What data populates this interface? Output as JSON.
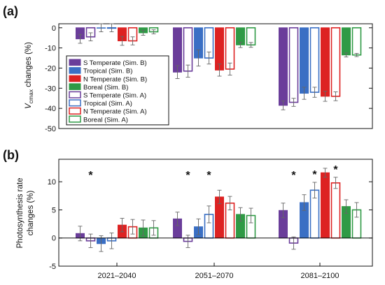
{
  "chart_data": [
    {
      "panel": "(a)",
      "type": "bar",
      "ylabel": "V_cmax changes (%)",
      "ylabel_main": "V",
      "ylabel_sub": "cmax",
      "ylabel_rest": " changes (%)",
      "ylim": [
        -50,
        2
      ],
      "yticks": [
        0,
        -10,
        -20,
        -30,
        -40,
        -50
      ],
      "categories": [
        "2021–2040",
        "2051–2070",
        "2081–2100"
      ],
      "series": [
        {
          "name": "S Temperate (Sim. B)",
          "color": "#6a3d9a",
          "filled": true,
          "values": [
            -5.5,
            -22,
            -38.5
          ],
          "errors": [
            2.2,
            3.2,
            2.2
          ]
        },
        {
          "name": "S Temperate (Sim. A)",
          "color": "#6a3d9a",
          "filled": false,
          "values": [
            -4.5,
            -21.5,
            -37
          ],
          "errors": [
            2,
            3,
            2
          ]
        },
        {
          "name": "Tropical (Sim. B)",
          "color": "#3a6fc4",
          "filled": true,
          "values": [
            0,
            -15,
            -32.5
          ],
          "errors": [
            2,
            4,
            3
          ]
        },
        {
          "name": "Tropical (Sim. A)",
          "color": "#3a6fc4",
          "filled": false,
          "values": [
            0,
            -15,
            -32
          ],
          "errors": [
            2,
            3,
            2.5
          ]
        },
        {
          "name": "N Temperate (Sim. B)",
          "color": "#dd2222",
          "filled": true,
          "values": [
            -6.5,
            -21,
            -34
          ],
          "errors": [
            2.2,
            3,
            2.5
          ]
        },
        {
          "name": "N Temperate (Sim. A)",
          "color": "#dd2222",
          "filled": false,
          "values": [
            -6.5,
            -20.5,
            -34
          ],
          "errors": [
            2,
            3,
            2.2
          ]
        },
        {
          "name": "Boreal (Sim. B)",
          "color": "#2f9a45",
          "filled": true,
          "values": [
            -2.5,
            -8.5,
            -13.5
          ],
          "errors": [
            1.2,
            1.3,
            1
          ]
        },
        {
          "name": "Boreal (Sim. A)",
          "color": "#2f9a45",
          "filled": false,
          "values": [
            -2,
            -8.5,
            -13.5
          ],
          "errors": [
            1,
            1.2,
            0.8
          ]
        }
      ],
      "legend": [
        {
          "label": "S Temperate (Sim. B)",
          "color": "#6a3d9a",
          "filled": true
        },
        {
          "label": "Tropical (Sim. B)",
          "color": "#3a6fc4",
          "filled": true
        },
        {
          "label": "N Temperate (Sim. B)",
          "color": "#dd2222",
          "filled": true
        },
        {
          "label": "Boreal (Sim. B)",
          "color": "#2f9a45",
          "filled": true
        },
        {
          "label": "S Temperate (Sim. A)",
          "color": "#6a3d9a",
          "filled": false
        },
        {
          "label": "Tropical (Sim. A)",
          "color": "#3a6fc4",
          "filled": false
        },
        {
          "label": "N Temperate (Sim. A)",
          "color": "#dd2222",
          "filled": false
        },
        {
          "label": "Boreal (Sim. A)",
          "color": "#2f9a45",
          "filled": false
        }
      ],
      "legend_position": "middle-left",
      "grid": false
    },
    {
      "panel": "(b)",
      "type": "bar",
      "ylabel": "Photosynthesis rate changes (%)",
      "ylabel_line1": "Photosynthesis rate",
      "ylabel_line2": "changes (%)",
      "ylim": [
        -5,
        14
      ],
      "yticks": [
        -5,
        0,
        5,
        10
      ],
      "categories": [
        "2021–2040",
        "2051–2070",
        "2081–2100"
      ],
      "series": [
        {
          "name": "S Temperate (Sim. B)",
          "color": "#6a3d9a",
          "filled": true,
          "values": [
            0.8,
            3.4,
            4.9
          ],
          "errors": [
            1.3,
            1.2,
            1.3
          ]
        },
        {
          "name": "S Temperate (Sim. A)",
          "color": "#6a3d9a",
          "filled": false,
          "values": [
            -0.5,
            -0.6,
            -0.9
          ],
          "errors": [
            1.2,
            1.1,
            1.1
          ]
        },
        {
          "name": "Tropical (Sim. B)",
          "color": "#3a6fc4",
          "filled": true,
          "values": [
            -1.0,
            2.0,
            6.3
          ],
          "errors": [
            1.4,
            1.4,
            1.4
          ]
        },
        {
          "name": "Tropical (Sim. A)",
          "color": "#3a6fc4",
          "filled": false,
          "values": [
            -0.5,
            4.2,
            8.5
          ],
          "errors": [
            1.4,
            1.5,
            1.4
          ]
        },
        {
          "name": "N Temperate (Sim. B)",
          "color": "#dd2222",
          "filled": true,
          "values": [
            2.3,
            7.3,
            11.6
          ],
          "errors": [
            1.2,
            1.2,
            0.8
          ]
        },
        {
          "name": "N Temperate (Sim. A)",
          "color": "#dd2222",
          "filled": false,
          "values": [
            2.0,
            6.2,
            9.8
          ],
          "errors": [
            1.3,
            1.2,
            1.0
          ]
        },
        {
          "name": "Boreal (Sim. B)",
          "color": "#2f9a45",
          "filled": true,
          "values": [
            1.8,
            4.2,
            5.6
          ],
          "errors": [
            1.4,
            1.2,
            1.2
          ]
        },
        {
          "name": "Boreal (Sim. A)",
          "color": "#2f9a45",
          "filled": false,
          "values": [
            1.8,
            4.0,
            5.0
          ],
          "errors": [
            1.3,
            1.3,
            1.3
          ]
        }
      ],
      "significance": [
        {
          "category": 0,
          "series": 1,
          "mark": "*"
        },
        {
          "category": 1,
          "series": 1,
          "mark": "*"
        },
        {
          "category": 1,
          "series": 3,
          "mark": "*"
        },
        {
          "category": 2,
          "series": 1,
          "mark": "*"
        },
        {
          "category": 2,
          "series": 3,
          "mark": "*"
        },
        {
          "category": 2,
          "series": 5,
          "mark": "*"
        }
      ],
      "grid": false
    }
  ]
}
